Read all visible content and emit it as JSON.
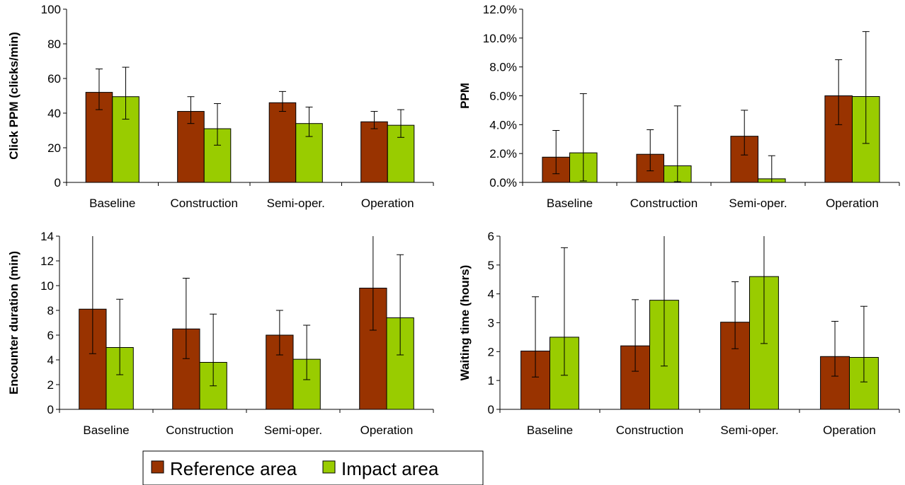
{
  "colors": {
    "reference": "#993300",
    "impact": "#99CC00"
  },
  "legend": {
    "reference_label": "Reference area",
    "impact_label": "Impact area"
  },
  "chart_data": [
    {
      "type": "bar",
      "title": "",
      "xlabel": "",
      "ylabel": "Click PPM (clicks/min)",
      "categories": [
        "Baseline",
        "Construction",
        "Semi-oper.",
        "Operation"
      ],
      "ylim": [
        0,
        100
      ],
      "yticks": [
        0,
        20,
        40,
        60,
        80,
        100
      ],
      "ytick_labels": [
        "0",
        "20",
        "40",
        "60",
        "80",
        "100"
      ],
      "series": [
        {
          "name": "Reference area",
          "values": [
            52,
            41,
            46,
            35
          ],
          "err_low": [
            42,
            34,
            41,
            31
          ],
          "err_high": [
            65.5,
            49.5,
            52.5,
            41
          ]
        },
        {
          "name": "Impact area",
          "values": [
            49.5,
            31,
            34,
            33
          ],
          "err_low": [
            36.5,
            21.5,
            26.5,
            26
          ],
          "err_high": [
            66.5,
            45.5,
            43.5,
            42
          ]
        }
      ]
    },
    {
      "type": "bar",
      "title": "",
      "xlabel": "",
      "ylabel": "PPM",
      "categories": [
        "Baseline",
        "Construction",
        "Semi-oper.",
        "Operation"
      ],
      "ylim": [
        0,
        12
      ],
      "yticks": [
        0,
        2,
        4,
        6,
        8,
        10,
        12
      ],
      "ytick_labels": [
        "0.0%",
        "2.0%",
        "4.0%",
        "6.0%",
        "8.0%",
        "10.0%",
        "12.0%"
      ],
      "series": [
        {
          "name": "Reference area",
          "values": [
            1.75,
            1.95,
            3.2,
            6.0
          ],
          "err_low": [
            0.6,
            0.8,
            1.9,
            4.0
          ],
          "err_high": [
            3.6,
            3.65,
            5.0,
            8.5
          ]
        },
        {
          "name": "Impact area",
          "values": [
            2.05,
            1.15,
            0.25,
            5.95
          ],
          "err_low": [
            0.1,
            0.05,
            0.0,
            2.7
          ],
          "err_high": [
            6.15,
            5.3,
            1.85,
            10.45
          ]
        }
      ]
    },
    {
      "type": "bar",
      "title": "",
      "xlabel": "",
      "ylabel": "Encounter duration (min)",
      "categories": [
        "Baseline",
        "Construction",
        "Semi-oper.",
        "Operation"
      ],
      "ylim": [
        0,
        14
      ],
      "yticks": [
        0,
        2,
        4,
        6,
        8,
        10,
        12,
        14
      ],
      "ytick_labels": [
        "0",
        "2",
        "4",
        "6",
        "8",
        "10",
        "12",
        "14"
      ],
      "series": [
        {
          "name": "Reference area",
          "values": [
            8.1,
            6.5,
            6.0,
            9.8
          ],
          "err_low": [
            4.5,
            4.1,
            4.4,
            6.4
          ],
          "err_high": [
            14,
            10.6,
            8.0,
            14
          ]
        },
        {
          "name": "Impact area",
          "values": [
            5.0,
            3.8,
            4.05,
            7.4
          ],
          "err_low": [
            2.8,
            1.9,
            2.4,
            4.4
          ],
          "err_high": [
            8.9,
            7.7,
            6.8,
            12.5
          ]
        }
      ]
    },
    {
      "type": "bar",
      "title": "",
      "xlabel": "",
      "ylabel": "Waiting time (hours)",
      "categories": [
        "Baseline",
        "Construction",
        "Semi-oper.",
        "Operation"
      ],
      "ylim": [
        0,
        6
      ],
      "yticks": [
        0,
        1,
        2,
        3,
        4,
        5,
        6
      ],
      "ytick_labels": [
        "0",
        "1",
        "2",
        "3",
        "4",
        "5",
        "6"
      ],
      "series": [
        {
          "name": "Reference area",
          "values": [
            2.02,
            2.2,
            3.02,
            1.83
          ],
          "err_low": [
            1.12,
            1.32,
            2.1,
            1.15
          ],
          "err_high": [
            3.9,
            3.8,
            4.42,
            3.05
          ]
        },
        {
          "name": "Impact area",
          "values": [
            2.5,
            3.78,
            4.6,
            1.8
          ],
          "err_low": [
            1.18,
            1.5,
            2.28,
            0.95
          ],
          "err_high": [
            5.6,
            6,
            6,
            3.57
          ]
        }
      ]
    }
  ]
}
